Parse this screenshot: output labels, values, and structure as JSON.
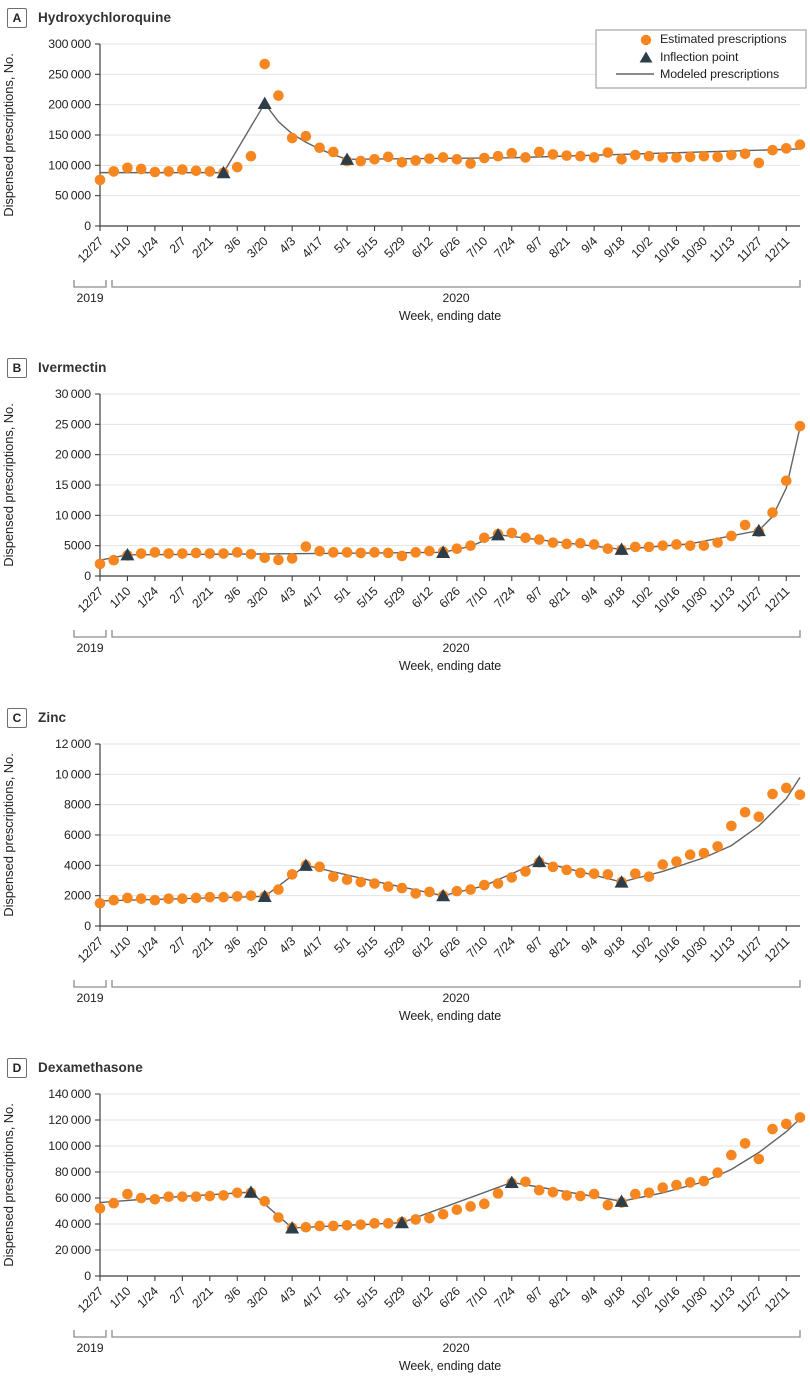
{
  "colors": {
    "estimated_dot": "#F6861F",
    "inflection_triangle": "#2E3D4A",
    "model_line": "#636363",
    "gridline": "#E3E3E3",
    "axis": "#3F3F3F",
    "text": "#1F1F1F",
    "bracket": "#8C8C8C",
    "legend_border": "#A3A3A3"
  },
  "legend": {
    "items": [
      {
        "marker": "circle-marker",
        "label": "Estimated prescriptions"
      },
      {
        "marker": "triangle-marker",
        "label": "Inflection point"
      },
      {
        "marker": "line-marker",
        "label": "Modeled prescriptions"
      }
    ]
  },
  "x_axis": {
    "label": "Week, ending date",
    "year_left": "2019",
    "year_right": "2020",
    "tick_every": 2,
    "weeks": [
      "12/27",
      "1/3",
      "1/10",
      "1/17",
      "1/24",
      "1/31",
      "2/7",
      "2/14",
      "2/21",
      "2/28",
      "3/6",
      "3/13",
      "3/20",
      "3/27",
      "4/3",
      "4/10",
      "4/17",
      "4/24",
      "5/1",
      "5/8",
      "5/15",
      "5/22",
      "5/29",
      "6/5",
      "6/12",
      "6/19",
      "6/26",
      "7/3",
      "7/10",
      "7/17",
      "7/24",
      "7/31",
      "8/7",
      "8/14",
      "8/21",
      "8/28",
      "9/4",
      "9/11",
      "9/18",
      "9/25",
      "10/2",
      "10/9",
      "10/16",
      "10/23",
      "10/30",
      "11/6",
      "11/13",
      "11/20",
      "11/27",
      "12/4",
      "12/11",
      "12/18"
    ],
    "tick_labels": [
      "12/27",
      "1/10",
      "1/24",
      "2/7",
      "2/21",
      "3/6",
      "3/20",
      "4/3",
      "4/17",
      "5/1",
      "5/15",
      "5/29",
      "6/12",
      "6/26",
      "7/10",
      "7/24",
      "8/7",
      "8/21",
      "9/4",
      "9/18",
      "10/2",
      "10/16",
      "10/30",
      "11/13",
      "11/27",
      "12/11"
    ]
  },
  "chart_data": [
    {
      "type": "scatter",
      "panel": "A",
      "title": "Hydroxychloroquine",
      "ylabel": "Dispensed prescriptions, No.",
      "xlabel": "Week, ending date",
      "ylim": [
        0,
        300000
      ],
      "ystep": 50000,
      "legend_visible": true,
      "estimated": [
        76000,
        90000,
        96000,
        94000,
        89000,
        90000,
        93000,
        91000,
        90000,
        88000,
        97000,
        115000,
        267000,
        215000,
        145000,
        148000,
        129000,
        122000,
        107000,
        107000,
        110000,
        114000,
        105000,
        108000,
        111000,
        113000,
        110000,
        103000,
        112000,
        115000,
        120000,
        113000,
        122000,
        118000,
        116000,
        115000,
        113000,
        121000,
        110000,
        117000,
        115000,
        113000,
        113000,
        114000,
        115000,
        114000,
        117000,
        119000,
        104000,
        125000,
        128000,
        134000
      ],
      "modeled_points": [
        [
          0,
          88000
        ],
        [
          9,
          88000
        ],
        [
          12,
          202000
        ],
        [
          13,
          172000
        ],
        [
          14,
          152000
        ],
        [
          15,
          138000
        ],
        [
          16,
          127000
        ],
        [
          17,
          117500
        ],
        [
          18,
          110000
        ],
        [
          30,
          112500
        ],
        [
          51,
          127000
        ]
      ],
      "inflection_points": [
        [
          9,
          88000
        ],
        [
          12,
          202000
        ],
        [
          18,
          110000
        ]
      ]
    },
    {
      "type": "scatter",
      "panel": "B",
      "title": "Ivermectin",
      "ylabel": "Dispensed prescriptions, No.",
      "xlabel": "Week, ending date",
      "ylim": [
        0,
        30000
      ],
      "ystep": 5000,
      "legend_visible": false,
      "estimated": [
        2000,
        2600,
        3400,
        3700,
        3900,
        3700,
        3700,
        3800,
        3700,
        3700,
        3900,
        3600,
        3000,
        2650,
        2900,
        4850,
        4100,
        3900,
        3900,
        3800,
        3900,
        3800,
        3300,
        3900,
        4100,
        4000,
        4500,
        5000,
        6300,
        6900,
        7100,
        6300,
        6000,
        5500,
        5300,
        5400,
        5200,
        4500,
        4300,
        4800,
        4800,
        5000,
        5200,
        5000,
        5000,
        5500,
        6600,
        8400,
        7300,
        10450,
        15700,
        24700
      ],
      "modeled_points": [
        [
          0,
          2600
        ],
        [
          2,
          3500
        ],
        [
          13,
          3650
        ],
        [
          25,
          3900
        ],
        [
          27,
          4900
        ],
        [
          29,
          6800
        ],
        [
          33,
          5700
        ],
        [
          38,
          4400
        ],
        [
          43,
          5300
        ],
        [
          48,
          7500
        ],
        [
          49,
          9800
        ],
        [
          50,
          14500
        ],
        [
          51,
          24500
        ]
      ],
      "inflection_points": [
        [
          2,
          3500
        ],
        [
          25,
          3900
        ],
        [
          29,
          6800
        ],
        [
          38,
          4400
        ],
        [
          48,
          7500
        ]
      ]
    },
    {
      "type": "scatter",
      "panel": "C",
      "title": "Zinc",
      "ylabel": "Dispensed prescriptions, No.",
      "xlabel": "Week, ending date",
      "ylim": [
        0,
        12000
      ],
      "ystep": 2000,
      "legend_visible": false,
      "estimated": [
        1500,
        1700,
        1850,
        1800,
        1700,
        1800,
        1800,
        1850,
        1900,
        1900,
        1950,
        2000,
        1950,
        2400,
        3400,
        4000,
        3900,
        3250,
        3050,
        2900,
        2800,
        2600,
        2500,
        2150,
        2250,
        2000,
        2300,
        2400,
        2700,
        2800,
        3200,
        3600,
        4200,
        3900,
        3700,
        3500,
        3450,
        3400,
        2900,
        3450,
        3250,
        4050,
        4250,
        4700,
        4800,
        5250,
        6600,
        7500,
        7200,
        8700,
        9100,
        8650
      ],
      "modeled_points": [
        [
          0,
          1650
        ],
        [
          12,
          1950
        ],
        [
          15,
          4000
        ],
        [
          20,
          2950
        ],
        [
          25,
          2000
        ],
        [
          28,
          2650
        ],
        [
          32,
          4250
        ],
        [
          38,
          2900
        ],
        [
          41,
          3600
        ],
        [
          44,
          4500
        ],
        [
          46,
          5300
        ],
        [
          48,
          6600
        ],
        [
          50,
          8400
        ],
        [
          51,
          9800
        ]
      ],
      "inflection_points": [
        [
          12,
          1950
        ],
        [
          15,
          4000
        ],
        [
          25,
          2000
        ],
        [
          32,
          4250
        ],
        [
          38,
          2900
        ]
      ]
    },
    {
      "type": "scatter",
      "panel": "D",
      "title": "Dexamethasone",
      "ylabel": "Dispensed prescriptions, No.",
      "xlabel": "Week, ending date",
      "ylim": [
        0,
        140000
      ],
      "ystep": 20000,
      "legend_visible": false,
      "estimated": [
        52000,
        56000,
        63000,
        60000,
        59000,
        61000,
        61000,
        61000,
        61500,
        62000,
        64000,
        64000,
        57500,
        45000,
        37000,
        37500,
        38500,
        38500,
        39000,
        39500,
        40500,
        40500,
        41500,
        43500,
        44500,
        47500,
        51000,
        53500,
        55500,
        63500,
        71500,
        72500,
        66000,
        64500,
        62000,
        61500,
        63000,
        54500,
        56500,
        63000,
        64000,
        68000,
        70000,
        72000,
        73000,
        79500,
        93000,
        102000,
        90000,
        113000,
        117000,
        122000
      ],
      "modeled_points": [
        [
          0,
          56500
        ],
        [
          5,
          60500
        ],
        [
          11,
          64500
        ],
        [
          14,
          37000
        ],
        [
          22,
          41000
        ],
        [
          30,
          72000
        ],
        [
          38,
          57500
        ],
        [
          41,
          64000
        ],
        [
          44,
          72500
        ],
        [
          46,
          82000
        ],
        [
          48,
          95000
        ],
        [
          50,
          111000
        ],
        [
          51,
          121000
        ]
      ],
      "inflection_points": [
        [
          11,
          64500
        ],
        [
          14,
          37000
        ],
        [
          22,
          41000
        ],
        [
          30,
          72000
        ],
        [
          38,
          57500
        ]
      ]
    }
  ]
}
